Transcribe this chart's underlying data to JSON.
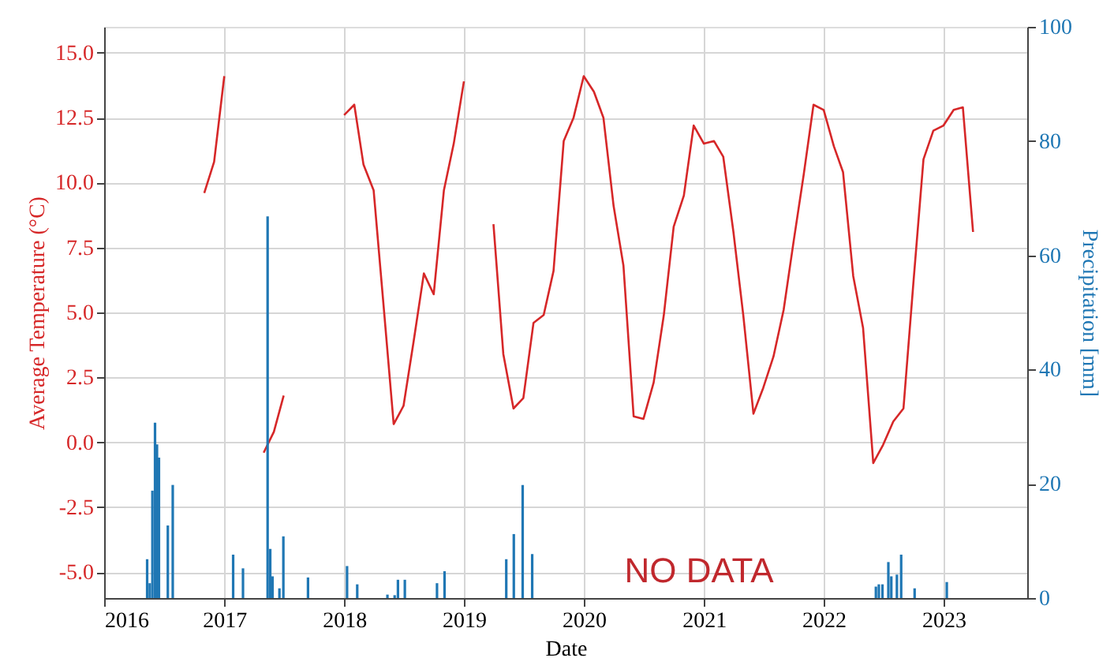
{
  "chart_data": {
    "type": "line",
    "xlabel": "Date",
    "ylabel": "Average Temperature (°C)",
    "y2label": "Precipitation [mm]",
    "xlim": [
      "2016-01-01",
      "2023-09-13"
    ],
    "xticks": [
      {
        "value": "2016-01-01",
        "label": "2016"
      },
      {
        "value": "2017-01-01",
        "label": "2017"
      },
      {
        "value": "2018-01-01",
        "label": "2018"
      },
      {
        "value": "2019-01-01",
        "label": "2019"
      },
      {
        "value": "2020-01-01",
        "label": "2020"
      },
      {
        "value": "2021-01-01",
        "label": "2021"
      },
      {
        "value": "2022-01-01",
        "label": "2022"
      },
      {
        "value": "2023-01-01",
        "label": "2023"
      }
    ],
    "ylim": [
      -6,
      16
    ],
    "yticks": [
      {
        "value": -5,
        "label": "-5.0"
      },
      {
        "value": -2.5,
        "label": "-2.5"
      },
      {
        "value": 0,
        "label": "0.0"
      },
      {
        "value": 2.5,
        "label": "2.5"
      },
      {
        "value": 5,
        "label": "5.0"
      },
      {
        "value": 7.5,
        "label": "7.5"
      },
      {
        "value": 10,
        "label": "10.0"
      },
      {
        "value": 12.5,
        "label": "12.5"
      },
      {
        "value": 15,
        "label": "15.0"
      }
    ],
    "y2lim": [
      0,
      100
    ],
    "y2ticks": [
      0,
      20,
      40,
      60,
      80,
      100
    ],
    "grid": true,
    "annotations": [
      "NO DATA"
    ],
    "series": [
      {
        "color": "#d62728",
        "x": [
          "2016-11",
          "2016-12",
          "2017-01",
          "2017-02",
          "2017-03",
          "2017-04",
          "2017-05",
          "2017-06",
          "2017-07",
          "2017-08",
          "2017-09",
          "2017-10",
          "2017-11",
          "2017-12",
          "2018-01",
          "2018-02",
          "2018-03",
          "2018-04",
          "2018-05",
          "2018-06",
          "2018-07",
          "2018-08",
          "2018-09",
          "2018-10",
          "2018-11",
          "2018-12",
          "2019-01",
          "2019-02",
          "2019-03",
          "2019-04",
          "2019-05",
          "2019-06",
          "2019-07",
          "2019-08",
          "2019-09",
          "2019-10",
          "2019-11",
          "2019-12",
          "2020-01",
          "2020-02",
          "2020-03",
          "2020-04",
          "2020-05",
          "2020-06",
          "2020-07",
          "2020-08",
          "2020-09",
          "2020-10",
          "2020-11",
          "2020-12",
          "2021-01",
          "2021-02",
          "2021-03",
          "2021-04",
          "2021-05",
          "2021-06",
          "2021-07",
          "2021-08",
          "2021-09",
          "2021-10",
          "2021-11",
          "2021-12",
          "2022-01",
          "2022-02",
          "2022-03",
          "2022-04",
          "2022-05",
          "2022-06",
          "2022-07",
          "2022-08",
          "2022-09",
          "2022-10",
          "2022-11",
          "2022-12",
          "2023-01",
          "2023-02",
          "2023-03",
          "2023-04"
        ],
        "values": [
          9.6,
          10.8,
          14.1,
          null,
          null,
          null,
          -0.4,
          0.4,
          1.8,
          null,
          null,
          null,
          null,
          null,
          12.6,
          13.0,
          10.7,
          9.7,
          5.3,
          0.7,
          1.4,
          3.9,
          6.5,
          5.7,
          9.7,
          11.5,
          13.9,
          null,
          null,
          8.4,
          3.4,
          1.3,
          1.7,
          4.6,
          4.9,
          6.6,
          11.6,
          12.5,
          14.1,
          13.5,
          12.5,
          9.1,
          6.8,
          1.0,
          0.9,
          2.3,
          4.9,
          8.3,
          9.5,
          12.2,
          11.5,
          11.6,
          11.0,
          8.1,
          4.9,
          1.1,
          2.1,
          3.3,
          5.1,
          7.7,
          10.3,
          13.0,
          12.8,
          11.4,
          10.4,
          6.4,
          4.4,
          -0.8,
          -0.1,
          0.8,
          1.3,
          6.1,
          10.9,
          12.0,
          12.2,
          12.8,
          12.9,
          8.1
        ]
      },
      {
        "type": "bar",
        "axis": "y2",
        "color": "#1f77b4",
        "x": [
          "2016-05-11",
          "2016-05-19",
          "2016-05-27",
          "2016-06-04",
          "2016-06-10",
          "2016-06-16",
          "2016-07-13",
          "2016-07-28",
          "2017-01-28",
          "2017-02-27",
          "2017-05-13",
          "2017-05-21",
          "2017-05-28",
          "2017-06-18",
          "2017-06-30",
          "2017-09-13",
          "2018-01-10",
          "2018-02-10",
          "2018-05-13",
          "2018-06-04",
          "2018-06-14",
          "2018-07-05",
          "2018-10-11",
          "2018-11-03",
          "2019-05-10",
          "2019-06-02",
          "2019-06-29",
          "2019-07-28",
          "2022-06-09",
          "2022-06-18",
          "2022-06-29",
          "2022-07-17",
          "2022-07-26",
          "2022-08-12",
          "2022-08-25",
          "2022-10-05",
          "2023-01-11"
        ],
        "values": [
          6.8,
          2.6,
          18.8,
          30.7,
          26.9,
          24.6,
          12.7,
          19.8,
          7.6,
          5.2,
          66.8,
          8.6,
          3.8,
          1.7,
          10.8,
          3.6,
          5.6,
          2.4,
          0.6,
          0.5,
          3.2,
          3.2,
          2.6,
          4.7,
          6.8,
          11.2,
          19.8,
          7.7,
          2.0,
          2.4,
          2.4,
          6.3,
          3.8,
          4.1,
          7.6,
          1.7,
          2.8
        ]
      }
    ]
  }
}
